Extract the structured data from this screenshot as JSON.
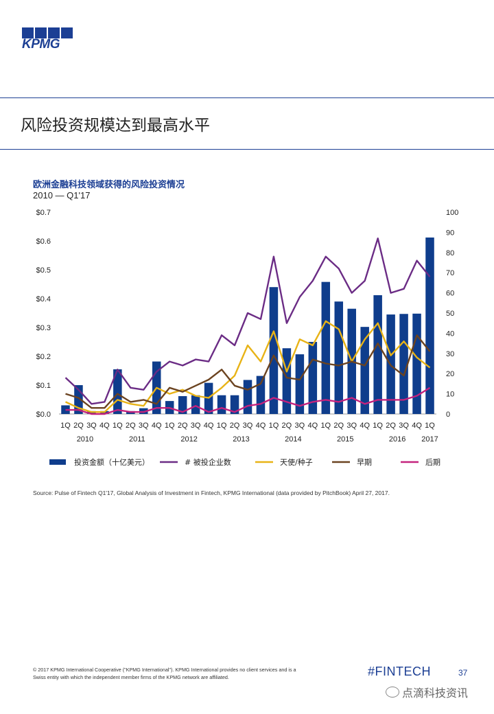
{
  "brand": {
    "logo_text": "KPMG"
  },
  "page": {
    "title": "风险投资规模达到最高水平"
  },
  "chart_data": {
    "type": "bar",
    "title": "欧洲金融科技领域获得的风险投资情况",
    "subtitle": "2010 — Q1'17",
    "categories": [
      "1Q",
      "2Q",
      "3Q",
      "4Q",
      "1Q",
      "2Q",
      "3Q",
      "4Q",
      "1Q",
      "2Q",
      "3Q",
      "4Q",
      "1Q",
      "2Q",
      "3Q",
      "4Q",
      "1Q",
      "2Q",
      "3Q",
      "4Q",
      "1Q",
      "2Q",
      "3Q",
      "4Q",
      "1Q",
      "2Q",
      "3Q",
      "4Q",
      "1Q"
    ],
    "years": [
      {
        "label": "2010",
        "start": 0,
        "end": 3
      },
      {
        "label": "2011",
        "start": 4,
        "end": 7
      },
      {
        "label": "2012",
        "start": 8,
        "end": 11
      },
      {
        "label": "2013",
        "start": 12,
        "end": 15
      },
      {
        "label": "2014",
        "start": 16,
        "end": 19
      },
      {
        "label": "2015",
        "start": 20,
        "end": 23
      },
      {
        "label": "2016",
        "start": 24,
        "end": 27
      },
      {
        "label": "2017",
        "start": 28,
        "end": 28
      }
    ],
    "left_axis": {
      "ticks": [
        "$0.0",
        "$0.1",
        "$0.2",
        "$0.3",
        "$0.4",
        "$0.5",
        "$0.6",
        "$0.7"
      ],
      "min": 0,
      "max": 0.7
    },
    "right_axis": {
      "ticks": [
        "0",
        "10",
        "20",
        "30",
        "40",
        "50",
        "60",
        "70",
        "80",
        "90",
        "100"
      ],
      "min": 0,
      "max": 100
    },
    "series": [
      {
        "name": "投资金额（十亿美元）",
        "kind": "bar",
        "axis": "left",
        "color": "#0f3d8c",
        "values": [
          0.03,
          0.1,
          0.01,
          0.01,
          0.155,
          0.01,
          0.02,
          0.182,
          0.045,
          0.062,
          0.065,
          0.108,
          0.065,
          0.065,
          0.118,
          0.132,
          0.44,
          0.228,
          0.207,
          0.25,
          0.458,
          0.39,
          0.365,
          0.302,
          0.412,
          0.345,
          0.347,
          0.348,
          0.612
        ]
      },
      {
        "name": "# 被投企业数",
        "kind": "line",
        "axis": "right",
        "color": "#6b2c85",
        "values": [
          18,
          12,
          5,
          6,
          22,
          13,
          12,
          21,
          26,
          24,
          27,
          26,
          39,
          34,
          50,
          47,
          78,
          45,
          58,
          66,
          78,
          72,
          60,
          66,
          87,
          60,
          62,
          76,
          68
        ]
      },
      {
        "name": "天使/种子",
        "kind": "line",
        "axis": "right",
        "color": "#e8b316",
        "values": [
          6,
          3,
          1,
          1,
          7,
          5,
          4,
          13,
          10,
          12,
          9,
          8,
          13,
          19,
          34,
          26,
          41,
          21,
          37,
          34,
          46,
          42,
          26,
          37,
          45,
          29,
          36,
          28,
          23
        ]
      },
      {
        "name": "早期",
        "kind": "line",
        "axis": "right",
        "color": "#6b4320",
        "values": [
          10,
          8,
          3,
          3,
          10,
          6,
          7,
          5,
          13,
          11,
          14,
          17,
          22,
          14,
          12,
          15,
          29,
          18,
          17,
          27,
          25,
          24,
          26,
          24,
          35,
          24,
          19,
          39,
          31
        ]
      },
      {
        "name": "后期",
        "kind": "line",
        "axis": "right",
        "color": "#c4227d",
        "values": [
          2,
          2,
          0,
          0,
          2,
          1,
          1,
          3,
          3,
          1,
          4,
          1,
          3,
          1,
          4,
          5,
          8,
          6,
          4,
          6,
          7,
          6,
          8,
          5,
          7,
          7,
          7,
          9,
          13
        ]
      }
    ],
    "legend_position": "bottom"
  },
  "source": "Source: Pulse of Fintech Q1'17, Global Analysis of Investment in Fintech, KPMG International (data provided by PitchBook) April 27, 2017.",
  "footer": {
    "copyright": "© 2017 KPMG International Cooperative (\"KPMG International\"). KPMG International provides no client services and is a Swiss entity with which the independent member firms of the KPMG network are affiliated.",
    "hashtag": "#FINTECH",
    "page_number": "37"
  },
  "watermark": {
    "text": "点滴科技资讯",
    "icon": "wechat-icon"
  }
}
